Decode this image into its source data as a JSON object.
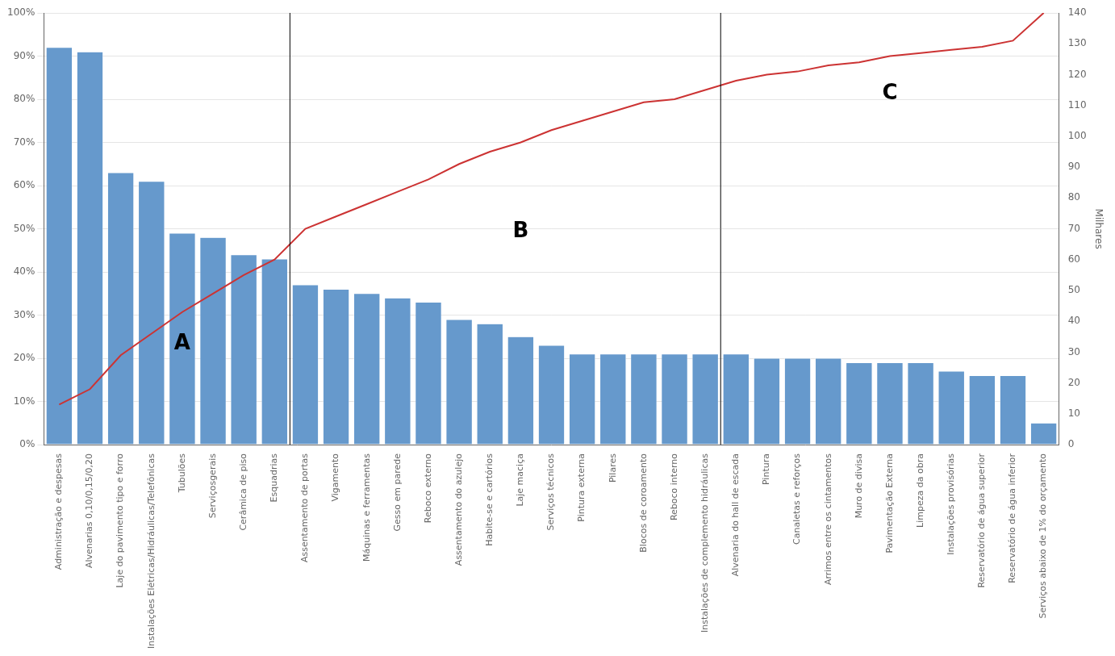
{
  "chart_data": {
    "type": "bar",
    "categories": [
      "Administração e despesas",
      "Alvenarias 0,10/0,15/0,20",
      "Laje do pavimento tipo e forro",
      "Instalações Elétricas/Hidráulicas/Telefônicas",
      "Tubulões",
      "Serviçosgerais",
      "Cerâmica de piso",
      "Esquadrias",
      "Assentamento de portas",
      "Vigamento",
      "Máquinas e ferramentas",
      "Gesso em parede",
      "Reboco externo",
      "Assentamento do azulejo",
      "Habite-se e cartórios",
      "Laje maciça",
      "Serviços técnicos",
      "Pintura externa",
      "Pilares",
      "Blocos de coroamento",
      "Reboco interno",
      "Instalações de complemento hidráulicas",
      "Alvenaria do hall de escada",
      "Pintura",
      "Canaletas e reforços",
      "Arrimos entre os cintamentos",
      "Muro de divisa",
      "Pavimentação Externa",
      "Limpeza da obra",
      "Instalações provisórias",
      "Reservatório de água superior",
      "Reservatório de água inferior",
      "Serviços abaixo de 1% do orçamento"
    ],
    "series": [
      {
        "type": "bar",
        "color": "#6699CC",
        "values": [
          92,
          91,
          63,
          61,
          49,
          48,
          44,
          43,
          37,
          36,
          35,
          34,
          33,
          29,
          28,
          25,
          23,
          21,
          21,
          21,
          21,
          21,
          21,
          20,
          20,
          20,
          19,
          19,
          19,
          17,
          16,
          16,
          5
        ]
      },
      {
        "type": "line",
        "color": "#CC3333",
        "axis": "y2",
        "marker": "none",
        "values": [
          13,
          18,
          29,
          36,
          43,
          49,
          55,
          60,
          70,
          74,
          78,
          82,
          86,
          91,
          95,
          98,
          102,
          105,
          108,
          111,
          112,
          115,
          118,
          120,
          121,
          123,
          124,
          126,
          127,
          128,
          129,
          131,
          140
        ]
      }
    ],
    "ylim": [
      0,
      100
    ],
    "yticks": [
      {
        "value": 0,
        "label": "0%"
      },
      {
        "value": 10,
        "label": "10%"
      },
      {
        "value": 20,
        "label": "20%"
      },
      {
        "value": 30,
        "label": "30%"
      },
      {
        "value": 40,
        "label": "40%"
      },
      {
        "value": 50,
        "label": "50%"
      },
      {
        "value": 60,
        "label": "60%"
      },
      {
        "value": 70,
        "label": "70%"
      },
      {
        "value": 80,
        "label": "80%"
      },
      {
        "value": 90,
        "label": "90%"
      },
      {
        "value": 100,
        "label": "100%"
      }
    ],
    "y2label": "Milhares",
    "y2lim": [
      0,
      140
    ],
    "y2ticks": [
      0,
      10,
      20,
      30,
      40,
      50,
      60,
      70,
      80,
      90,
      100,
      110,
      120,
      130,
      140
    ],
    "grid": true,
    "separators": [
      [
        "Esquadrias",
        "Assentamento de portas"
      ],
      [
        "Instalações de complemento hidráulicas",
        "Alvenaria do hall de escada"
      ]
    ],
    "annotations": [
      {
        "text": "A",
        "x": "Tubulões",
        "y": 22
      },
      {
        "text": "B",
        "x": "Laje maciça",
        "y": 48
      },
      {
        "text": "C",
        "x": "Pavimentação Externa",
        "y": 80
      }
    ]
  }
}
